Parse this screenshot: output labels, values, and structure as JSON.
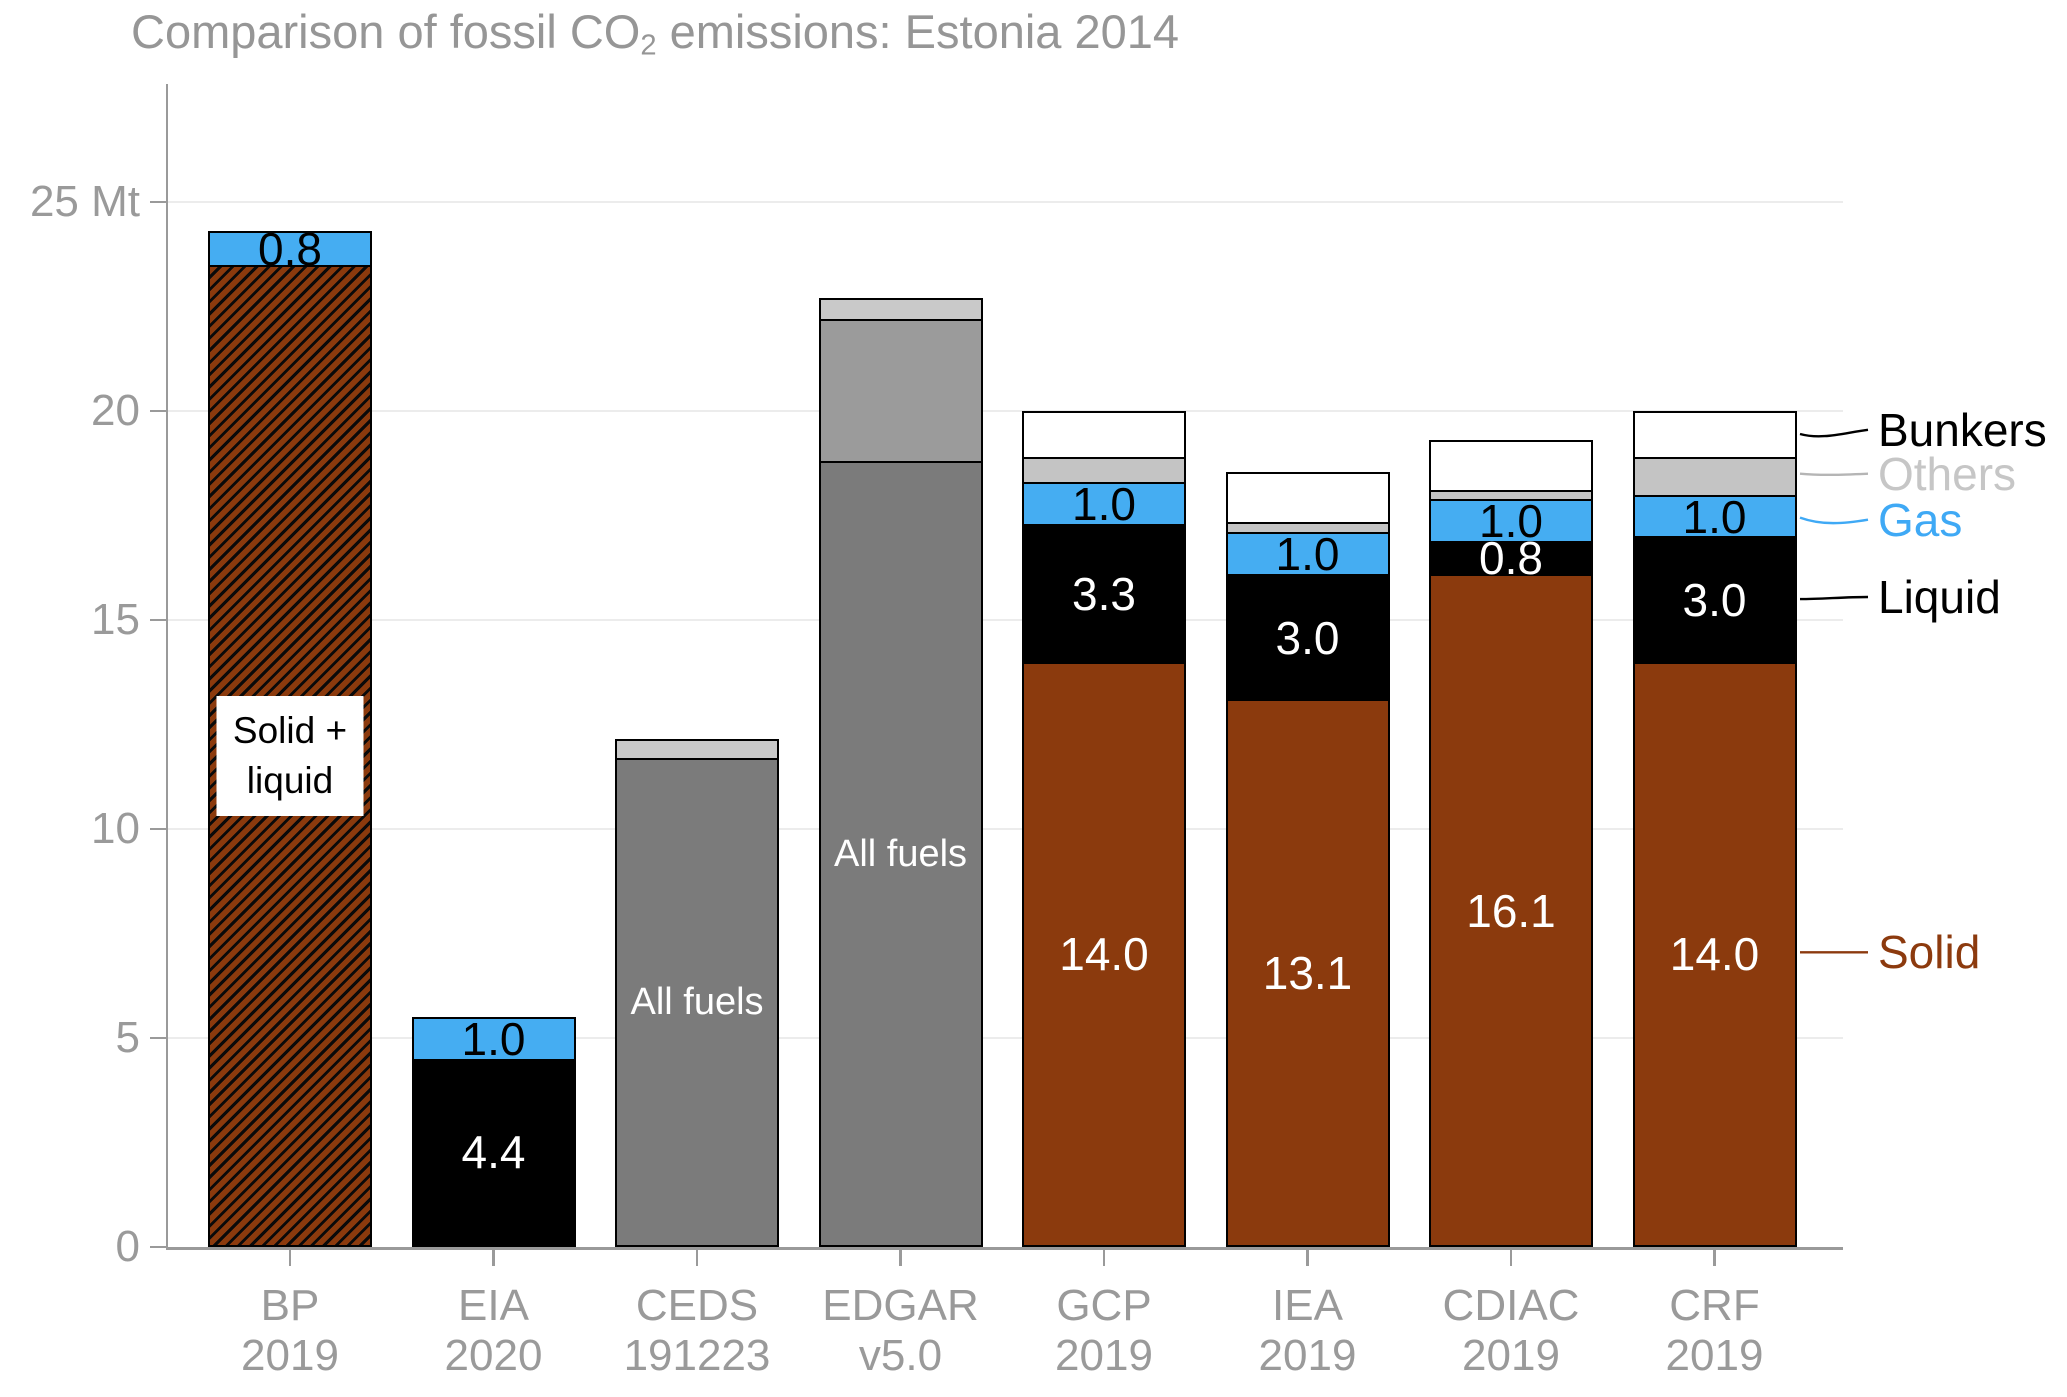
{
  "title": {
    "text_before_sub": "Comparison of fossil CO",
    "subscript": "2",
    "text_after_sub": " emissions: Estonia 2014"
  },
  "chart_data": {
    "type": "bar",
    "stacked": true,
    "title": "Comparison of fossil CO2 emissions: Estonia 2014",
    "unit": "Mt",
    "xlabel": "",
    "ylabel": "Mt",
    "ylim": [
      0,
      27.8
    ],
    "grid": true,
    "legend_position": "right",
    "yticks": [
      {
        "v": 0,
        "label": "0"
      },
      {
        "v": 5,
        "label": "5"
      },
      {
        "v": 10,
        "label": "10"
      },
      {
        "v": 15,
        "label": "15"
      },
      {
        "v": 20,
        "label": "20"
      },
      {
        "v": 25,
        "label": "25 Mt"
      }
    ],
    "colors": {
      "solid": "#8B3A0D",
      "liquid": "#000000",
      "gas": "#45ADF2",
      "others": "#C4C4C4",
      "bunkers": "#FFFFFF",
      "all_fuels": "#7B7B7B",
      "all_fuels_light": "#9B9B9B",
      "cap": "#C9C9C9"
    },
    "categories": [
      [
        "BP",
        "2019"
      ],
      [
        "EIA",
        "2020"
      ],
      [
        "CEDS",
        "191223"
      ],
      [
        "EDGAR",
        "v5.0"
      ],
      [
        "GCP",
        "2019"
      ],
      [
        "IEA",
        "2019"
      ],
      [
        "CDIAC",
        "2019"
      ],
      [
        "CRF",
        "2019"
      ]
    ],
    "bars": [
      {
        "category": "BP 2019",
        "total": 24.3,
        "segments": [
          {
            "name": "solid-liquid",
            "value": 23.5,
            "color": "solid",
            "hatch": true,
            "boxed_label": [
              "Solid +",
              "liquid"
            ]
          },
          {
            "name": "gas",
            "value": 0.8,
            "color": "gas",
            "label": "0.8",
            "label_color": "#000000"
          }
        ]
      },
      {
        "category": "EIA 2020",
        "total": 5.5,
        "segments": [
          {
            "name": "solid",
            "value": 0.1,
            "color": "solid"
          },
          {
            "name": "liquid",
            "value": 4.4,
            "color": "liquid",
            "label": "4.4",
            "label_color": "#FFFFFF"
          },
          {
            "name": "gas",
            "value": 1.0,
            "color": "gas",
            "label": "1.0",
            "label_color": "#000000"
          }
        ]
      },
      {
        "category": "CEDS 191223",
        "total": 12.15,
        "segments": [
          {
            "name": "all-fuels",
            "value": 11.7,
            "color": "all_fuels",
            "label": "All fuels",
            "label_color": "#FFFFFF",
            "label_small": true
          },
          {
            "name": "others-cap",
            "value": 0.45,
            "color": "cap"
          }
        ]
      },
      {
        "category": "EDGAR v5.0",
        "total": 22.7,
        "segments": [
          {
            "name": "all-fuels",
            "value": 18.8,
            "color": "all_fuels",
            "label": "All fuels",
            "label_color": "#FFFFFF",
            "label_small": true
          },
          {
            "name": "upper",
            "value": 3.4,
            "color": "all_fuels_light"
          },
          {
            "name": "others-cap",
            "value": 0.5,
            "color": "cap"
          }
        ]
      },
      {
        "category": "GCP 2019",
        "total": 20.0,
        "segments": [
          {
            "name": "solid",
            "value": 14.0,
            "color": "solid",
            "label": "14.0",
            "label_color": "#FFFFFF"
          },
          {
            "name": "liquid",
            "value": 3.3,
            "color": "liquid",
            "label": "3.3",
            "label_color": "#FFFFFF"
          },
          {
            "name": "gas",
            "value": 1.0,
            "color": "gas",
            "label": "1.0",
            "label_color": "#000000"
          },
          {
            "name": "others",
            "value": 0.6,
            "color": "others"
          },
          {
            "name": "bunkers",
            "value": 1.1,
            "color": "bunkers"
          }
        ]
      },
      {
        "category": "IEA 2019",
        "total": 18.55,
        "segments": [
          {
            "name": "solid",
            "value": 13.1,
            "color": "solid",
            "label": "13.1",
            "label_color": "#FFFFFF"
          },
          {
            "name": "liquid",
            "value": 3.0,
            "color": "liquid",
            "label": "3.0",
            "label_color": "#FFFFFF"
          },
          {
            "name": "gas",
            "value": 1.0,
            "color": "gas",
            "label": "1.0",
            "label_color": "#000000"
          },
          {
            "name": "others",
            "value": 0.25,
            "color": "others"
          },
          {
            "name": "bunkers",
            "value": 1.2,
            "color": "bunkers"
          }
        ]
      },
      {
        "category": "CDIAC 2019",
        "total": 19.3,
        "segments": [
          {
            "name": "solid",
            "value": 16.1,
            "color": "solid",
            "label": "16.1",
            "label_color": "#FFFFFF"
          },
          {
            "name": "liquid",
            "value": 0.8,
            "color": "liquid",
            "label": "0.8",
            "label_color": "#FFFFFF"
          },
          {
            "name": "gas",
            "value": 1.0,
            "color": "gas",
            "label": "1.0",
            "label_color": "#000000"
          },
          {
            "name": "others",
            "value": 0.2,
            "color": "others"
          },
          {
            "name": "bunkers",
            "value": 1.2,
            "color": "bunkers"
          }
        ]
      },
      {
        "category": "CRF 2019",
        "total": 20.0,
        "segments": [
          {
            "name": "solid",
            "value": 14.0,
            "color": "solid",
            "label": "14.0",
            "label_color": "#FFFFFF"
          },
          {
            "name": "liquid",
            "value": 3.0,
            "color": "liquid",
            "label": "3.0",
            "label_color": "#FFFFFF"
          },
          {
            "name": "gas",
            "value": 1.0,
            "color": "gas",
            "label": "1.0",
            "label_color": "#000000"
          },
          {
            "name": "others",
            "value": 0.9,
            "color": "others"
          },
          {
            "name": "bunkers",
            "value": 1.1,
            "color": "bunkers"
          }
        ]
      }
    ],
    "legend": [
      {
        "label": "Bunkers",
        "color": "#000000",
        "line_color": "#000000",
        "text_mt": 19.55,
        "anchor_mt": 19.45,
        "dip": 6
      },
      {
        "label": "Others",
        "color": "#C6C6C6",
        "line_color": "#B5B5B5",
        "text_mt": 18.5,
        "anchor_mt": 18.5,
        "dip": 2
      },
      {
        "label": "Gas",
        "color": "#3FA9F5",
        "line_color": "#3FA9F5",
        "text_mt": 17.4,
        "anchor_mt": 17.45,
        "dip": 8
      },
      {
        "label": "Liquid",
        "color": "#000000",
        "line_color": "#000000",
        "text_mt": 15.55,
        "anchor_mt": 15.5,
        "dip": 0
      },
      {
        "label": "Solid",
        "color": "#8C3A0E",
        "line_color": "#8C3A0E",
        "text_mt": 7.05,
        "anchor_mt": 7.05,
        "dip": 0
      }
    ]
  }
}
